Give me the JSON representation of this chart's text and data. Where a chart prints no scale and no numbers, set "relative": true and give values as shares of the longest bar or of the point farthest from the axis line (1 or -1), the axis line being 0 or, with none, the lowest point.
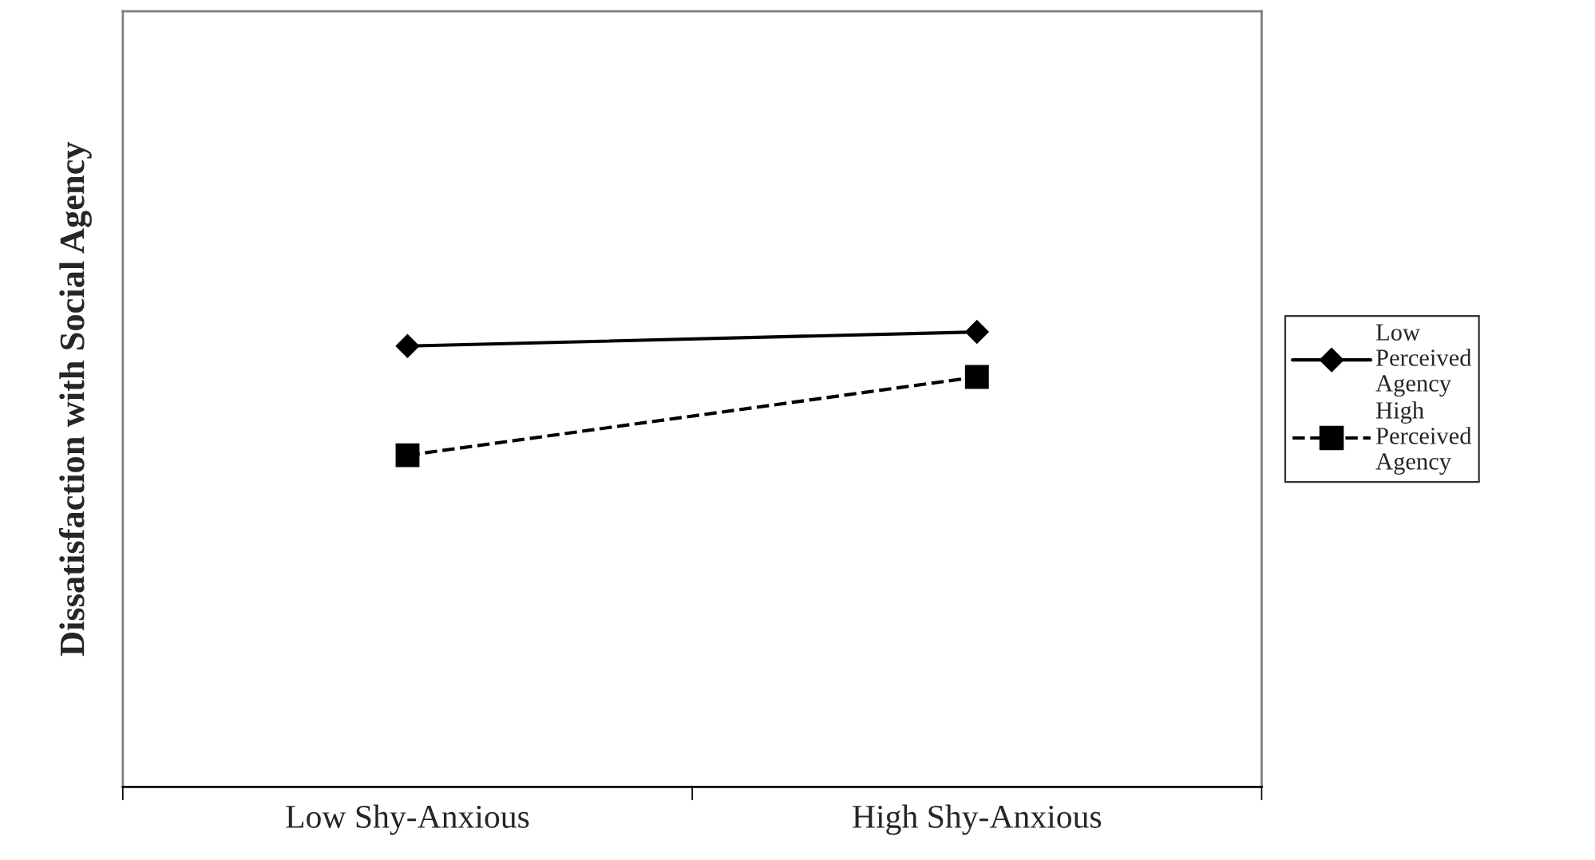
{
  "chart_data": {
    "type": "line",
    "relative": true,
    "ylabel": "Dissatisfaction with Social Agency",
    "categories": [
      "Low Shy-Anxious",
      "High Shy-Anxious"
    ],
    "series": [
      {
        "name": "Low Perceived Agency",
        "color": "#000000",
        "values": [
          0.969,
          1.0
        ],
        "marker": "diamond",
        "line_style": "solid"
      },
      {
        "name": "High Perceived Agency",
        "color": "#000000",
        "values": [
          0.729,
          0.901
        ],
        "marker": "square",
        "line_style": "dashed"
      }
    ],
    "legend": "right",
    "grid": false
  }
}
